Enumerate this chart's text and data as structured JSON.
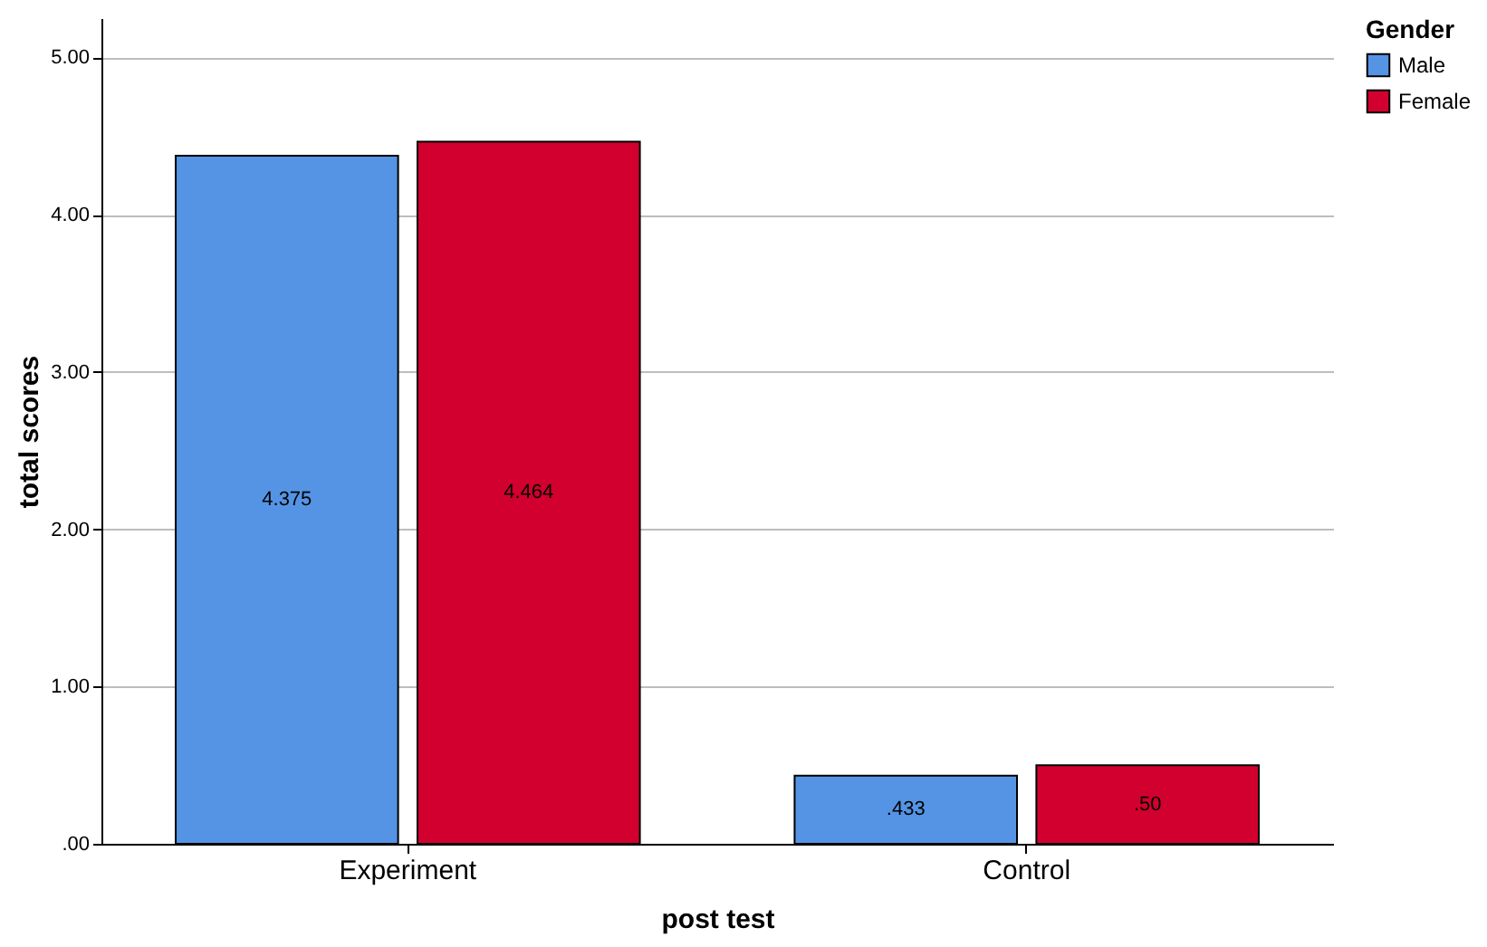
{
  "chart_data": {
    "type": "bar",
    "xlabel": "post test",
    "ylabel": "total scores",
    "legend_title": "Gender",
    "categories": [
      "Experiment",
      "Control"
    ],
    "series": [
      {
        "name": "Male",
        "color": "#5594e4",
        "values": [
          4.375,
          0.433
        ],
        "value_labels": [
          "4.375",
          ".433"
        ]
      },
      {
        "name": "Female",
        "color": "#d2002e",
        "values": [
          4.464,
          0.5
        ],
        "value_labels": [
          "4.464",
          ".50"
        ]
      }
    ],
    "ylim": [
      0,
      5.25
    ],
    "yticks": [
      {
        "value": 0,
        "label": ".00"
      },
      {
        "value": 1,
        "label": "1.00"
      },
      {
        "value": 2,
        "label": "2.00"
      },
      {
        "value": 3,
        "label": "3.00"
      },
      {
        "value": 4,
        "label": "4.00"
      },
      {
        "value": 5,
        "label": "5.00"
      }
    ],
    "grid": "y",
    "legend": "top right"
  }
}
